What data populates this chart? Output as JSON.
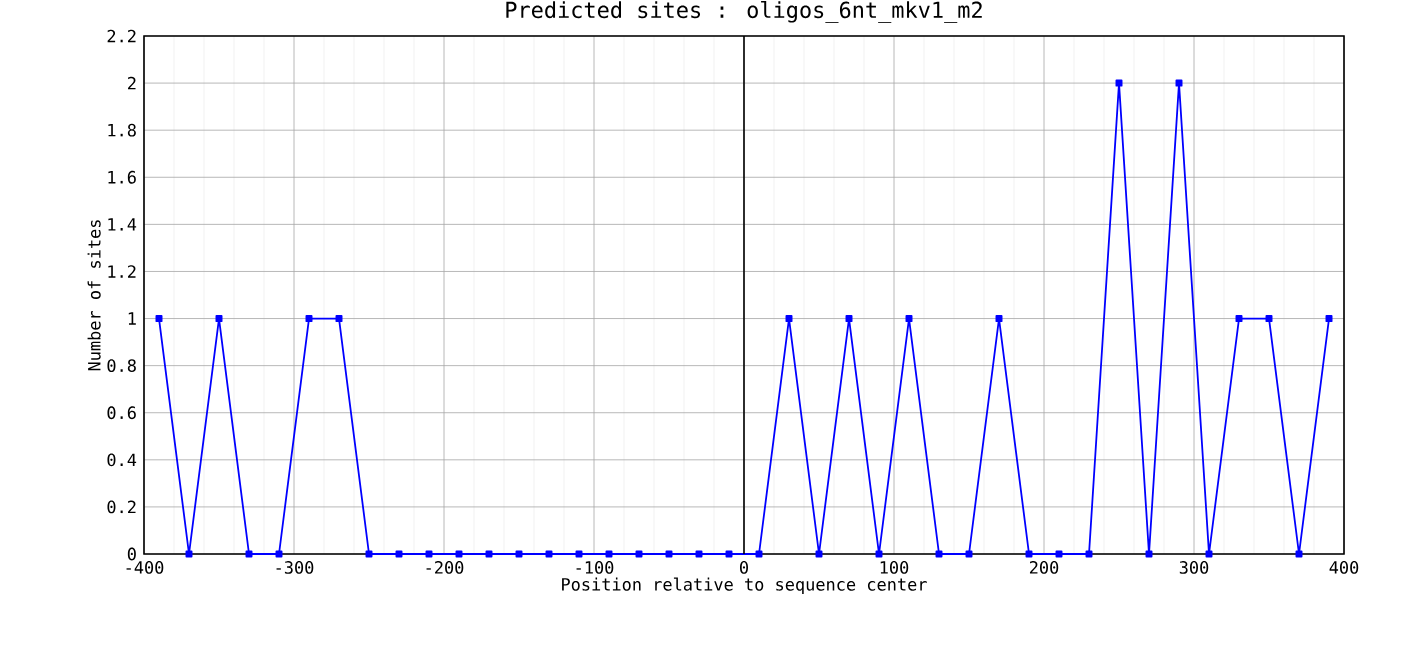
{
  "chart_data": {
    "type": "line",
    "title": "Predicted sites : oligos_6nt_mkv1_m2",
    "xlabel": "Position relative to sequence center",
    "ylabel": "Number of sites",
    "x": [
      -390,
      -370,
      -350,
      -330,
      -310,
      -290,
      -270,
      -250,
      -230,
      -210,
      -190,
      -170,
      -150,
      -130,
      -110,
      -90,
      -70,
      -50,
      -30,
      -10,
      10,
      30,
      50,
      70,
      90,
      110,
      130,
      150,
      170,
      190,
      210,
      230,
      250,
      270,
      290,
      310,
      330,
      350,
      370,
      390
    ],
    "series": [
      {
        "color": "#0000ff",
        "values": [
          1,
          0,
          1,
          0,
          0,
          1,
          1,
          0,
          0,
          0,
          0,
          0,
          0,
          0,
          0,
          0,
          0,
          0,
          0,
          0,
          0,
          1,
          0,
          1,
          0,
          1,
          0,
          0,
          1,
          0,
          0,
          0,
          2,
          0,
          2,
          0,
          1,
          1,
          0,
          1
        ]
      }
    ],
    "xlim": [
      -400,
      400
    ],
    "xticks": [
      -400,
      -300,
      -200,
      -100,
      0,
      100,
      200,
      300,
      400
    ],
    "ylim": [
      0,
      2.2
    ],
    "yticks": [
      0,
      0.2,
      0.4,
      0.6,
      0.8,
      1,
      1.2,
      1.4,
      1.6,
      1.8,
      2,
      2.2
    ],
    "ref_lines": [
      {
        "axis": "x",
        "value": 0,
        "color": "#000000"
      }
    ],
    "grid": true,
    "marker": "square",
    "line_style": "solid"
  }
}
